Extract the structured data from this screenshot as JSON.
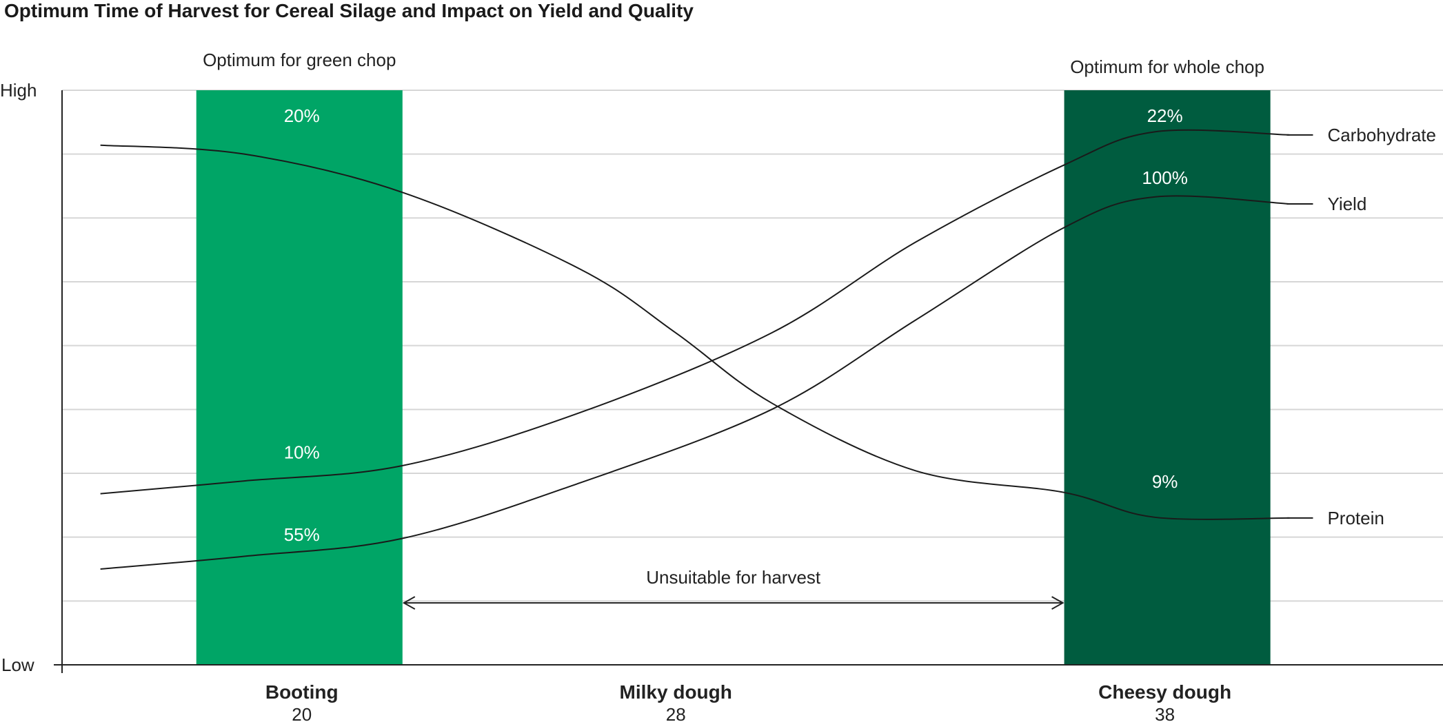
{
  "chart_data": {
    "type": "line",
    "title": "Optimum Time of Harvest for Cereal Silage and Impact on Yield and Quality",
    "y_axis": {
      "high_label": "High",
      "low_label": "Low",
      "ylim": [
        0,
        9
      ],
      "grid": true
    },
    "x_axis": {
      "xlim": [
        15.2,
        44
      ],
      "stages": [
        {
          "name": "Booting",
          "value": "20",
          "x": 20.2
        },
        {
          "name": "Milky dough",
          "value": "28",
          "x": 28
        },
        {
          "name": "Cheesy dough",
          "value": "38",
          "x": 38.2
        }
      ]
    },
    "bands": [
      {
        "name": "Optimum for green chop",
        "x0": 18,
        "x1": 22.3,
        "color": "#00a566"
      },
      {
        "name": "Optimum for whole chop",
        "x0": 36.1,
        "x1": 40.4,
        "color": "#005c3f"
      }
    ],
    "unsuitable": {
      "label": "Unsuitable for harvest",
      "x0": 22.3,
      "x1": 36.1,
      "y": 0.97
    },
    "series": [
      {
        "name": "Carbohydrate",
        "x": [
          16,
          19,
          22.3,
          26,
          30,
          33,
          36.1,
          38,
          40.8
        ],
        "y": [
          2.68,
          2.88,
          3.12,
          3.95,
          5.2,
          6.62,
          7.83,
          8.35,
          8.3
        ]
      },
      {
        "name": "Yield",
        "x": [
          16,
          19,
          22.3,
          26,
          30,
          33,
          36.1,
          38,
          40.8
        ],
        "y": [
          1.5,
          1.7,
          1.98,
          2.85,
          4.0,
          5.4,
          6.85,
          7.33,
          7.22
        ]
      },
      {
        "name": "Protein",
        "x": [
          16,
          19,
          22.3,
          26,
          28,
          30,
          33,
          36.1,
          38,
          40.8
        ],
        "y": [
          8.14,
          8.0,
          7.4,
          6.2,
          5.2,
          4.1,
          3.04,
          2.7,
          2.31,
          2.3
        ]
      }
    ],
    "annotations": [
      {
        "text": "20%",
        "x": 20.2,
        "y": 8.6
      },
      {
        "text": "10%",
        "x": 20.2,
        "y": 3.33
      },
      {
        "text": "55%",
        "x": 20.2,
        "y": 2.04
      },
      {
        "text": "22%",
        "x": 38.2,
        "y": 8.6
      },
      {
        "text": "100%",
        "x": 38.2,
        "y": 7.63
      },
      {
        "text": "9%",
        "x": 38.2,
        "y": 2.87
      }
    ]
  }
}
